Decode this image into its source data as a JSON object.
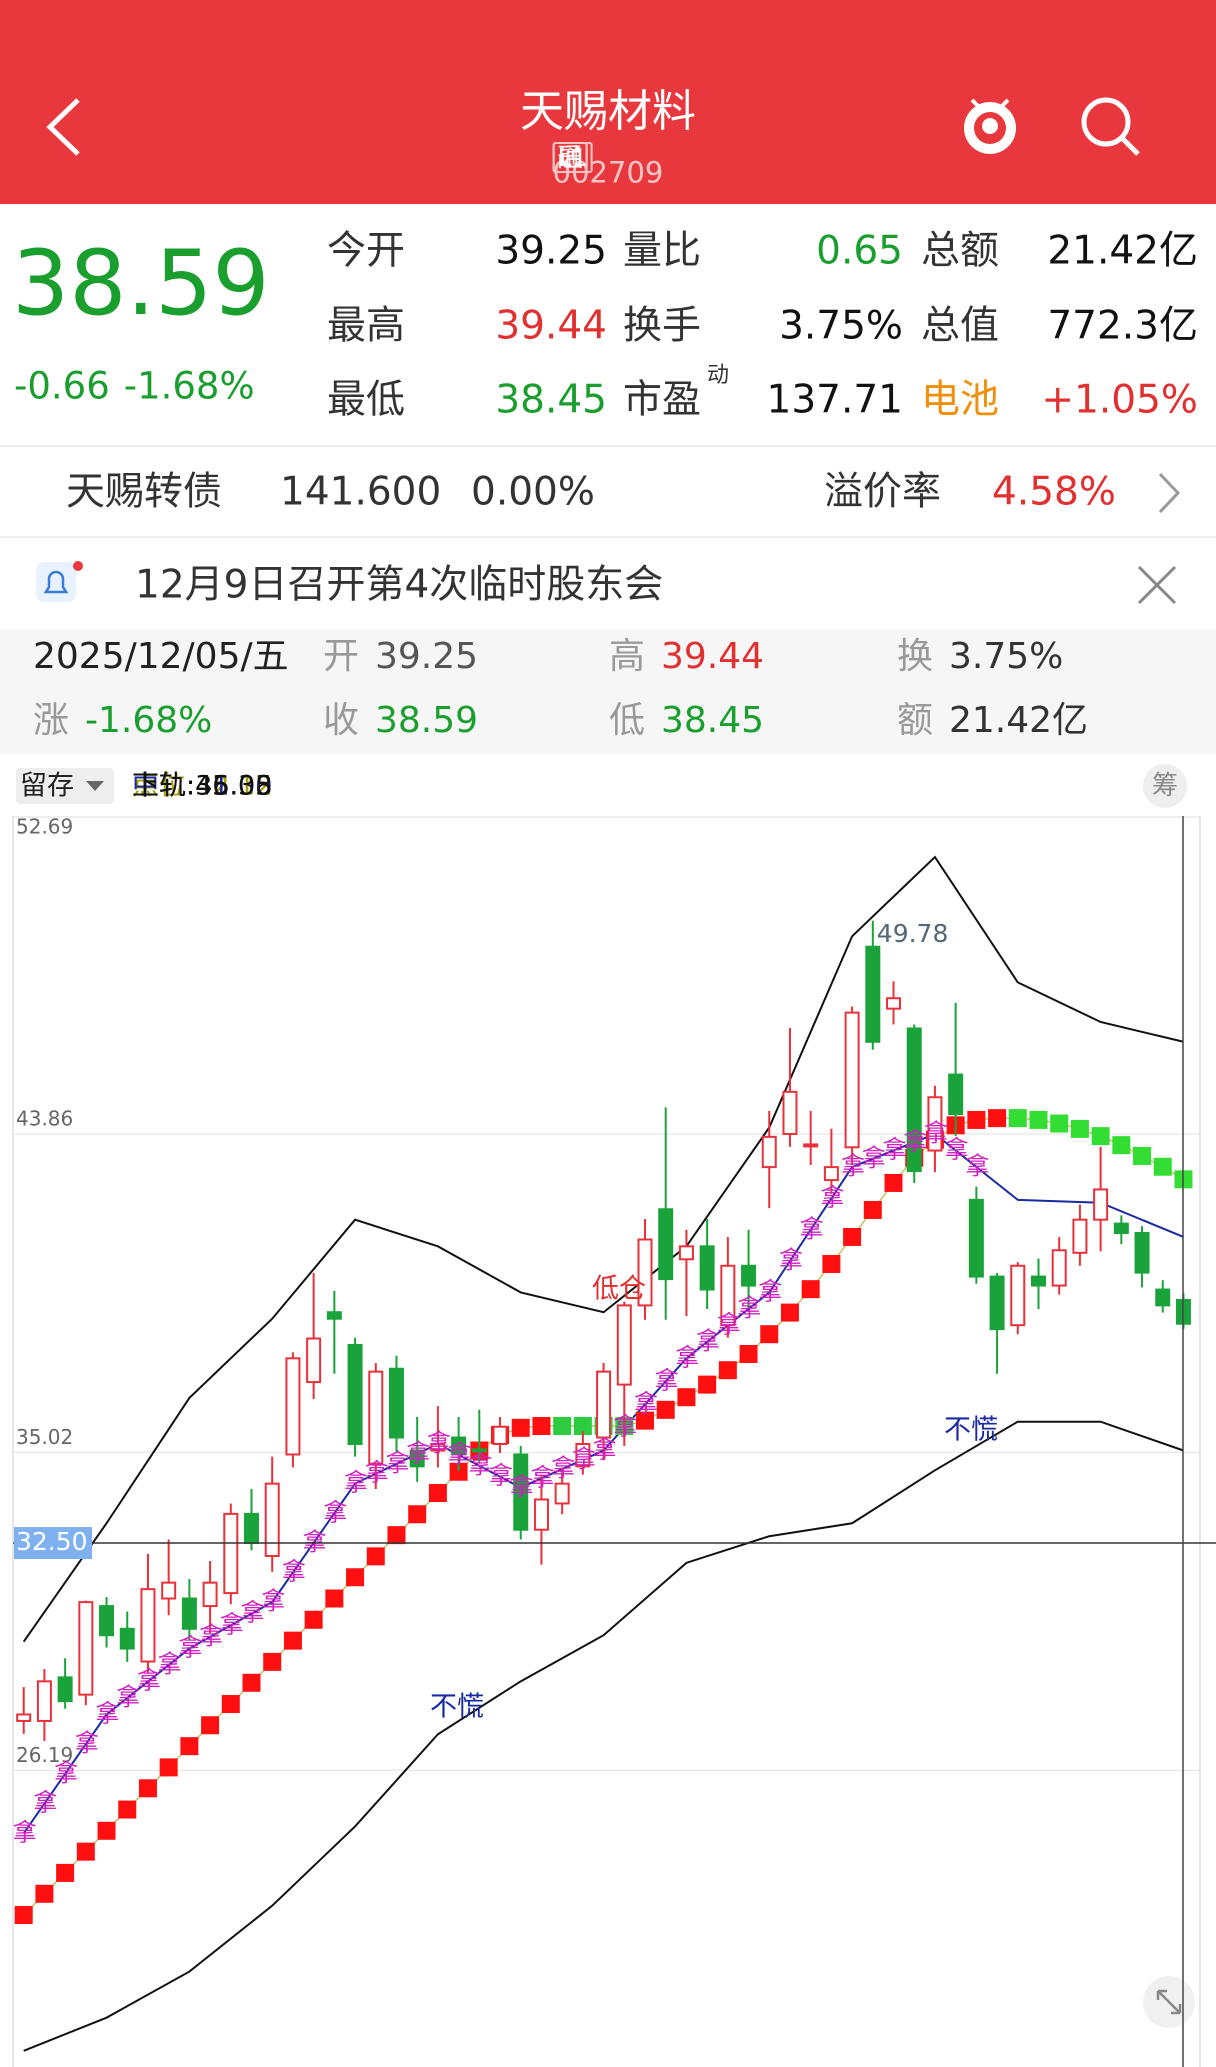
{
  "header": {
    "title": "天赐材料",
    "code": "002709",
    "tags": [
      "融",
      "通",
      "L1"
    ]
  },
  "quote": {
    "price": "38.59",
    "change": "-0.66",
    "change_pct": "-1.68%",
    "color": "#1a9e2e",
    "fields": [
      {
        "label": "今开",
        "value": "39.25",
        "color": "#111111"
      },
      {
        "label": "量比",
        "value": "0.65",
        "color": "#1a9e2e"
      },
      {
        "label": "总额",
        "value": "21.42亿",
        "color": "#111111"
      },
      {
        "label": "最高",
        "value": "39.44",
        "color": "#e03030"
      },
      {
        "label": "换手",
        "value": "3.75%",
        "color": "#111111"
      },
      {
        "label": "总值",
        "value": "772.3亿",
        "color": "#111111"
      },
      {
        "label": "最低",
        "value": "38.45",
        "color": "#1a9e2e"
      },
      {
        "label": "市盈",
        "sup": "动",
        "value": "137.71",
        "color": "#111111"
      },
      {
        "label": "电池",
        "value": "+1.05%",
        "color": "#e03030",
        "label_color": "#f0900a"
      }
    ]
  },
  "bond": {
    "name": "天赐转债",
    "price": "141.600",
    "change": "0.00%",
    "premium_label": "溢价率",
    "premium": "4.58%"
  },
  "notice": "12月9日召开第4次临时股东会",
  "day": {
    "date": "2025/12/05/五",
    "fields": [
      {
        "label": "开",
        "value": "39.25",
        "color": "#555555"
      },
      {
        "label": "高",
        "value": "39.44",
        "color": "#e03030"
      },
      {
        "label": "换",
        "value": "3.75%",
        "color": "#333333"
      },
      {
        "label": "涨",
        "value": "-1.68%",
        "color": "#1a9e2e"
      },
      {
        "label": "收",
        "value": "38.59",
        "color": "#1a9e2e"
      },
      {
        "label": "低",
        "value": "38.45",
        "color": "#1a9e2e"
      },
      {
        "label": "额",
        "value": "21.42亿",
        "color": "#333333"
      }
    ]
  },
  "indicator": {
    "selector": "留存",
    "chip": "筹",
    "items": [
      {
        "text": "点位:42.12",
        "color": "#a8a000"
      },
      {
        "text": "中轨:41.00",
        "color": "#1a2aa0"
      },
      {
        "text": "上轨:46.35",
        "color": "#111111"
      },
      {
        "text": "下轨:35.08",
        "color": "#111111"
      }
    ]
  },
  "chart_data": {
    "type": "candlestick",
    "ylim": [
      17.95,
      52.69
    ],
    "yticks": [
      52.69,
      43.86,
      35.02,
      26.19
    ],
    "cursor": {
      "value": 32.5,
      "label": "32.50"
    },
    "up_color": "#e8313a",
    "down_color": "#1aa33a",
    "band_color": "#111111",
    "mid_color": "#1a2aa0",
    "hold_color": "#d020c0",
    "open": [
      27.56,
      27.56,
      28.77,
      28.29,
      30.75,
      30.12,
      29.21,
      30.96,
      30.96,
      30.75,
      31.11,
      33.31,
      32.14,
      34.96,
      36.97,
      38.91,
      38.0,
      34.7,
      37.34,
      35.07,
      35.07,
      35.43,
      35.1,
      35.25,
      34.96,
      32.87,
      33.6,
      34.63,
      35.43,
      36.9,
      39.1,
      41.77,
      40.38,
      40.74,
      38.55,
      40.2,
      42.94,
      43.86,
      43.57,
      42.58,
      43.49,
      49.06,
      47.34,
      46.79,
      43.4,
      45.51,
      42.03,
      39.9,
      38.55,
      39.9,
      39.65,
      40.56,
      41.48,
      41.37,
      41.11,
      39.54,
      39.25
    ],
    "close": [
      27.74,
      28.66,
      28.11,
      30.86,
      29.94,
      29.57,
      31.22,
      31.4,
      30.12,
      31.4,
      33.31,
      32.5,
      34.15,
      37.63,
      38.18,
      38.73,
      35.25,
      37.26,
      35.43,
      34.63,
      35.25,
      34.96,
      35.07,
      35.73,
      32.87,
      33.71,
      34.15,
      35.25,
      37.26,
      39.1,
      40.93,
      39.83,
      40.74,
      39.54,
      40.2,
      39.65,
      43.78,
      45.03,
      43.57,
      42.94,
      47.23,
      46.42,
      47.63,
      42.83,
      44.88,
      44.41,
      39.9,
      38.44,
      40.2,
      39.65,
      40.63,
      41.48,
      42.32,
      41.11,
      40.01,
      39.1,
      38.59
    ],
    "high": [
      28.5,
      29.0,
      29.3,
      30.9,
      31.0,
      30.6,
      32.2,
      32.6,
      31.5,
      32.0,
      33.6,
      34.0,
      34.9,
      37.8,
      40.0,
      39.5,
      38.2,
      37.5,
      37.7,
      36.0,
      36.3,
      36.0,
      36.2,
      36.0,
      35.2,
      34.4,
      34.6,
      35.6,
      37.5,
      39.2,
      41.5,
      44.6,
      41.2,
      41.5,
      41.0,
      41.2,
      44.5,
      46.8,
      44.5,
      44.0,
      47.4,
      49.78,
      48.1,
      46.9,
      45.2,
      47.5,
      42.4,
      40.0,
      40.3,
      40.4,
      41.0,
      41.9,
      43.5,
      41.6,
      41.3,
      39.8,
      39.44
    ],
    "low": [
      27.2,
      27.0,
      27.9,
      28.0,
      29.6,
      29.2,
      28.9,
      30.5,
      29.8,
      30.0,
      30.8,
      32.3,
      31.7,
      34.6,
      36.5,
      37.2,
      34.9,
      34.0,
      35.0,
      34.2,
      34.6,
      34.5,
      34.7,
      35.0,
      32.6,
      31.9,
      33.3,
      34.4,
      34.8,
      35.2,
      38.7,
      38.7,
      38.8,
      39.0,
      38.2,
      39.0,
      41.8,
      43.5,
      43.0,
      42.2,
      43.0,
      46.2,
      46.9,
      42.5,
      42.8,
      43.8,
      39.7,
      37.2,
      38.3,
      39.0,
      39.4,
      40.2,
      40.6,
      40.8,
      39.6,
      38.9,
      38.45
    ],
    "bands": {
      "upper": [
        29.76,
        33.05,
        36.53,
        38.73,
        41.48,
        40.74,
        39.46,
        38.91,
        40.74,
        44.04,
        49.35,
        51.55,
        48.07,
        46.97,
        46.42
      ],
      "mid": [
        24.44,
        27.74,
        29.57,
        30.86,
        34.15,
        35.25,
        34.04,
        35.07,
        37.63,
        39.46,
        42.94,
        43.86,
        42.03,
        41.95,
        41.0
      ],
      "lower": [
        18.4,
        19.32,
        20.6,
        22.43,
        24.63,
        27.19,
        28.66,
        29.94,
        31.95,
        32.69,
        33.05,
        34.52,
        35.87,
        35.87,
        35.07
      ]
    },
    "support": [
      22.17,
      22.76,
      23.34,
      23.93,
      24.51,
      25.1,
      25.69,
      26.27,
      26.86,
      27.44,
      28.03,
      28.62,
      29.2,
      29.79,
      30.37,
      30.96,
      31.55,
      32.13,
      32.72,
      33.3,
      33.89,
      34.48,
      35.07,
      35.5,
      35.7,
      35.75,
      35.75,
      35.75,
      35.75,
      35.75,
      35.9,
      36.2,
      36.55,
      36.9,
      37.3,
      37.75,
      38.3,
      38.9,
      39.55,
      40.25,
      41.0,
      41.75,
      42.5,
      43.2,
      43.7,
      44.1,
      44.25,
      44.3,
      44.3,
      44.25,
      44.15,
      44.0,
      43.8,
      43.55,
      43.25,
      42.95,
      42.6
    ],
    "max_label": {
      "value": 49.78,
      "label": "49.78"
    },
    "hold": "拿",
    "annotations": [
      {
        "text": "低仓",
        "color": "#e03030"
      },
      {
        "text": "不慌",
        "color": "#1a2aa0"
      },
      {
        "text": "不慌",
        "color": "#1a2aa0"
      }
    ]
  }
}
